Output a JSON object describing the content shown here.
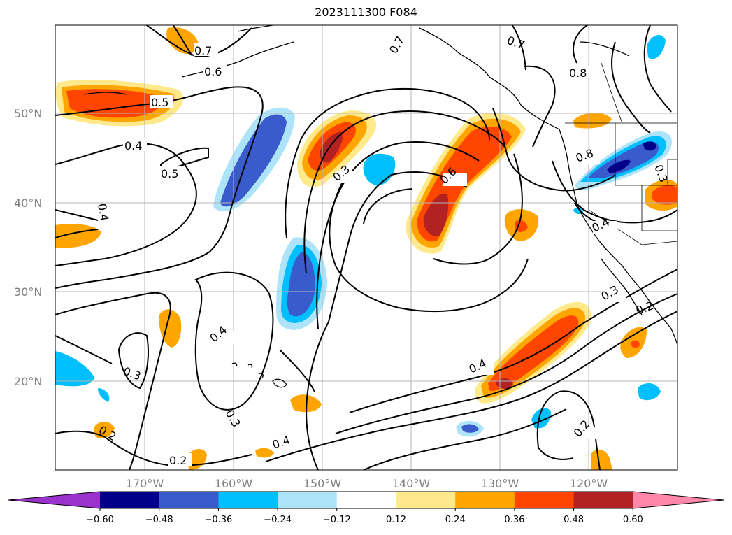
{
  "title": "2023111300 F084",
  "map": {
    "lat_labels": [
      "50°N",
      "40°N",
      "30°N",
      "20°N"
    ],
    "lon_labels": [
      "170°W",
      "160°W",
      "150°W",
      "140°W",
      "130°W",
      "120°W"
    ]
  },
  "contour_labels": [
    "0.7",
    "0.6",
    "0.5",
    "0.4",
    "0.5",
    "0.4",
    "0.3",
    "0.3",
    "0.6",
    "0.7",
    "0.7",
    "0.8",
    "0.8",
    "0.4",
    "0.3",
    "0.2",
    "0.4",
    "0.4",
    "0.3",
    "0.2",
    "0.2",
    "0.3",
    "0.4",
    "0.2"
  ],
  "colorbar": {
    "ticks": [
      "−0.60",
      "−0.48",
      "−0.36",
      "−0.24",
      "−0.12",
      "0.12",
      "0.24",
      "0.36",
      "0.48",
      "0.60"
    ],
    "colors": [
      "#9933cc",
      "#00008b",
      "#3a5bcc",
      "#00bfff",
      "#aee4fa",
      "#ffffff",
      "#ffe98a",
      "#ffa500",
      "#ff4500",
      "#b22222",
      "#ff88aa"
    ]
  }
}
